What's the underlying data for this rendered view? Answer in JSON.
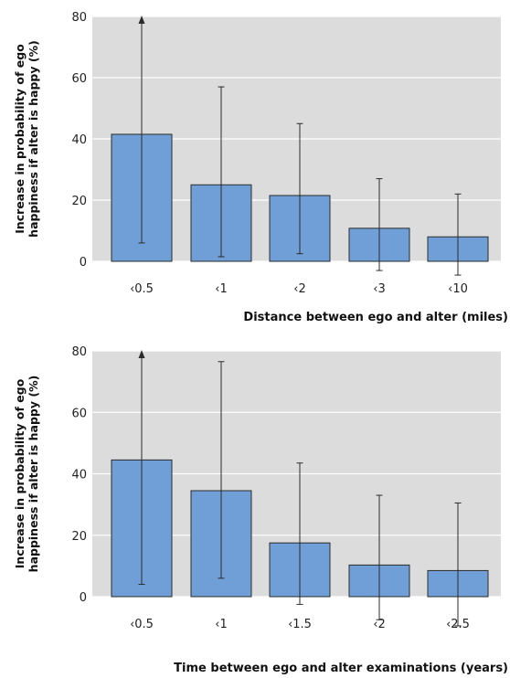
{
  "colors": {
    "bar": "#6f9fd6",
    "plot_bg": "#dcdcdc",
    "grid": "#ffffff",
    "text": "#222222"
  },
  "chart_data": [
    {
      "type": "bar",
      "categories": [
        "‹0.5",
        "‹1",
        "‹2",
        "‹3",
        "‹10"
      ],
      "values": [
        41.5,
        25,
        21.5,
        10.8,
        8
      ],
      "error_low": [
        6,
        1.5,
        2.5,
        -3,
        -4.5
      ],
      "error_high": [
        80,
        57,
        45,
        27,
        22
      ],
      "error_high_clipped": [
        true,
        false,
        false,
        false,
        false
      ],
      "ylim": [
        0,
        80
      ],
      "yticks": [
        0,
        20,
        40,
        60,
        80
      ],
      "ylabel_line1": "Increase in probability of ego",
      "ylabel_line2": "happiness if alter is happy (%)",
      "xlabel": "Distance between ego and alter (miles)",
      "grid": "horizontal"
    },
    {
      "type": "bar",
      "categories": [
        "‹0.5",
        "‹1",
        "‹1.5",
        "‹2",
        "‹2.5"
      ],
      "values": [
        44.5,
        34.5,
        17.5,
        10.3,
        8.5
      ],
      "error_low": [
        4,
        6,
        -2.5,
        -7.5,
        -9.5
      ],
      "error_high": [
        80,
        76.5,
        43.5,
        33,
        30.5
      ],
      "error_high_clipped": [
        true,
        false,
        false,
        false,
        false
      ],
      "ylim": [
        0,
        80
      ],
      "yticks": [
        0,
        20,
        40,
        60,
        80
      ],
      "ylabel_line1": "Increase in probability of ego",
      "ylabel_line2": "happiness if alter is happy (%)",
      "xlabel": "Time between ego and alter examinations (years)",
      "grid": "horizontal"
    }
  ]
}
